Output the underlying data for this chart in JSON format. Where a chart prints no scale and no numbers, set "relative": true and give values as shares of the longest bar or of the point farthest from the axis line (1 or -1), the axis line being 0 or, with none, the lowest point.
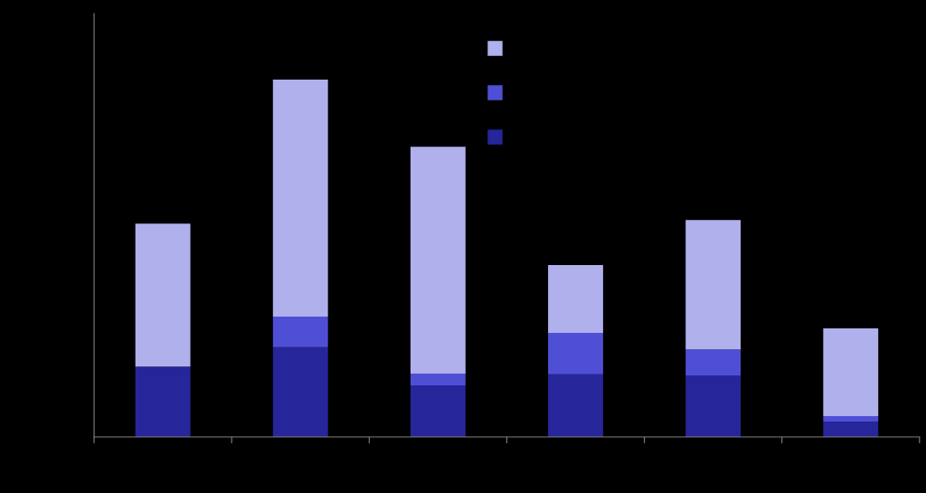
{
  "chart_data": {
    "type": "bar",
    "stacked": true,
    "relative": true,
    "categories": [
      null,
      null,
      null,
      null,
      null,
      null
    ],
    "series": [
      {
        "color": "#26269a",
        "values": [
          0.197,
          0.251,
          0.144,
          0.175,
          0.172,
          0.043
        ]
      },
      {
        "color": "#4f4fd6",
        "values": [
          0,
          0.086,
          0.033,
          0.116,
          0.073,
          0.015
        ]
      },
      {
        "color": "#b0b0ec",
        "values": [
          0.4,
          0.663,
          0.635,
          0.19,
          0.362,
          0.246
        ]
      }
    ]
  }
}
